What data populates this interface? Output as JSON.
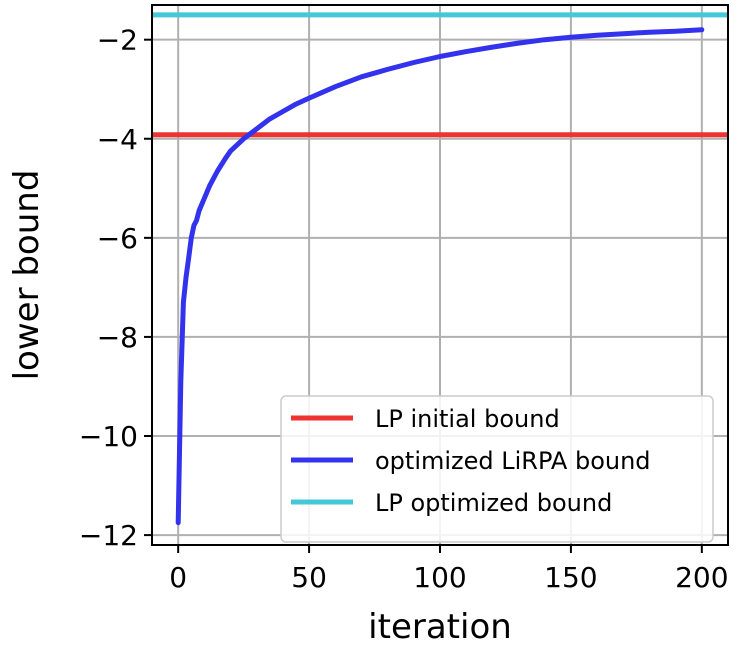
{
  "chart_data": {
    "type": "line",
    "xlabel": "iteration",
    "ylabel": "lower bound",
    "xlim": [
      -10,
      210
    ],
    "ylim": [
      -12.2,
      -1.3
    ],
    "xticks": [
      0,
      50,
      100,
      150,
      200
    ],
    "yticks": [
      -12,
      -10,
      -8,
      -6,
      -4,
      -2
    ],
    "xtick_labels": [
      "0",
      "50",
      "100",
      "150",
      "200"
    ],
    "ytick_labels": [
      "−12",
      "−10",
      "−8",
      "−6",
      "−4",
      "−2"
    ],
    "grid": true,
    "legend_position": "lower-right",
    "series": [
      {
        "name": "LP initial bound",
        "color": "#ee3333",
        "kind": "hline",
        "value": -3.92
      },
      {
        "name": "optimized LiRPA bound",
        "color": "#3333ee",
        "kind": "line",
        "x": [
          0,
          1,
          2,
          3,
          4,
          5,
          6,
          7,
          8,
          10,
          12,
          15,
          18,
          20,
          25,
          30,
          35,
          40,
          45,
          50,
          60,
          70,
          80,
          90,
          100,
          110,
          120,
          130,
          140,
          150,
          160,
          170,
          180,
          190,
          200
        ],
        "y": [
          -11.75,
          -8.9,
          -7.3,
          -6.8,
          -6.4,
          -6.0,
          -5.75,
          -5.65,
          -5.45,
          -5.2,
          -4.95,
          -4.65,
          -4.4,
          -4.25,
          -4.0,
          -3.8,
          -3.6,
          -3.45,
          -3.3,
          -3.18,
          -2.95,
          -2.75,
          -2.6,
          -2.46,
          -2.34,
          -2.24,
          -2.15,
          -2.07,
          -2.0,
          -1.95,
          -1.91,
          -1.88,
          -1.85,
          -1.83,
          -1.8
        ]
      },
      {
        "name": "LP optimized bound",
        "color": "#44c8d8",
        "kind": "hline",
        "value": -1.5
      }
    ]
  }
}
